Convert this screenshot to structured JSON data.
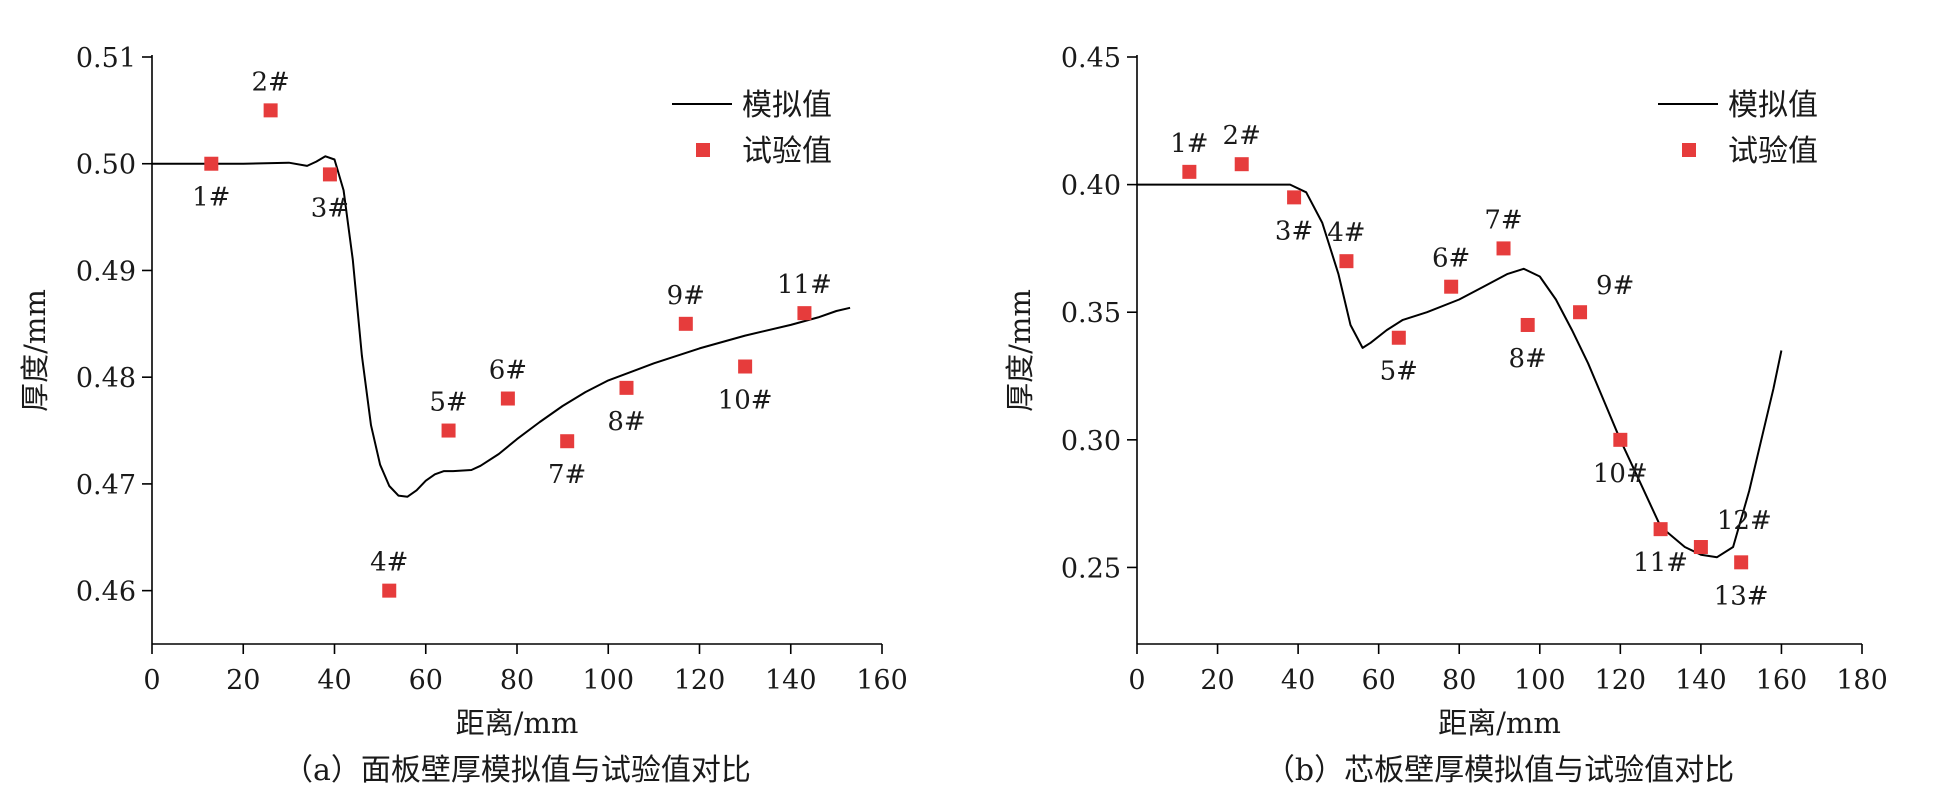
{
  "chart_data": [
    {
      "type": "line",
      "caption": "（a）面板壁厚模拟值与试验值对比",
      "xlabel": "距离/mm",
      "ylabel": "厚度/mm",
      "xlim": [
        0,
        160
      ],
      "ylim": [
        0.455,
        0.51
      ],
      "xticks": [
        0,
        20,
        40,
        60,
        80,
        100,
        120,
        140,
        160
      ],
      "yticks": [
        0.46,
        0.47,
        0.48,
        0.49,
        0.5,
        0.51
      ],
      "ytick_labels": [
        "0.46",
        "0.47",
        "0.48",
        "0.49",
        "0.50",
        "0.51"
      ],
      "legend": {
        "position": "top-right",
        "entries": [
          "模拟值",
          "试验值"
        ]
      },
      "series": [
        {
          "name": "模拟值",
          "kind": "line",
          "color": "#000000",
          "x": [
            0,
            10,
            20,
            30,
            34,
            36,
            38,
            40,
            42,
            44,
            46,
            48,
            50,
            52,
            54,
            56,
            58,
            60,
            62,
            64,
            66,
            70,
            72,
            76,
            80,
            85,
            90,
            95,
            100,
            110,
            120,
            130,
            140,
            146,
            150,
            153
          ],
          "y": [
            0.5,
            0.5,
            0.5,
            0.5001,
            0.4998,
            0.5002,
            0.5007,
            0.5004,
            0.4975,
            0.491,
            0.482,
            0.4755,
            0.4718,
            0.4698,
            0.4689,
            0.4688,
            0.4694,
            0.4703,
            0.4709,
            0.4712,
            0.4712,
            0.4713,
            0.4717,
            0.4728,
            0.4742,
            0.4758,
            0.4773,
            0.4786,
            0.4797,
            0.4813,
            0.4827,
            0.4839,
            0.4849,
            0.4856,
            0.4862,
            0.4865
          ]
        },
        {
          "name": "试验值",
          "kind": "scatter",
          "color": "#e63c3c",
          "points": [
            {
              "label": "1#",
              "x": 13,
              "y": 0.5,
              "label_pos": "below"
            },
            {
              "label": "2#",
              "x": 26,
              "y": 0.505,
              "label_pos": "above"
            },
            {
              "label": "3#",
              "x": 39,
              "y": 0.499,
              "label_pos": "below"
            },
            {
              "label": "4#",
              "x": 52,
              "y": 0.46,
              "label_pos": "above"
            },
            {
              "label": "5#",
              "x": 65,
              "y": 0.475,
              "label_pos": "above"
            },
            {
              "label": "6#",
              "x": 78,
              "y": 0.478,
              "label_pos": "above"
            },
            {
              "label": "7#",
              "x": 91,
              "y": 0.474,
              "label_pos": "below"
            },
            {
              "label": "8#",
              "x": 104,
              "y": 0.479,
              "label_pos": "below"
            },
            {
              "label": "9#",
              "x": 117,
              "y": 0.485,
              "label_pos": "above"
            },
            {
              "label": "10#",
              "x": 130,
              "y": 0.481,
              "label_pos": "below"
            },
            {
              "label": "11#",
              "x": 143,
              "y": 0.486,
              "label_pos": "above"
            }
          ]
        }
      ]
    },
    {
      "type": "line",
      "caption": "（b）芯板壁厚模拟值与试验值对比",
      "xlabel": "距离/mm",
      "ylabel": "厚度/mm",
      "xlim": [
        0,
        180
      ],
      "ylim": [
        0.22,
        0.45
      ],
      "xticks": [
        0,
        20,
        40,
        60,
        80,
        100,
        120,
        140,
        160,
        180
      ],
      "yticks": [
        0.25,
        0.3,
        0.35,
        0.4,
        0.45
      ],
      "ytick_labels": [
        "0.25",
        "0.30",
        "0.35",
        "0.40",
        "0.45"
      ],
      "legend": {
        "position": "top-right",
        "entries": [
          "模拟值",
          "试验值"
        ]
      },
      "series": [
        {
          "name": "模拟值",
          "kind": "line",
          "color": "#000000",
          "x": [
            0,
            20,
            38,
            42,
            46,
            50,
            53,
            56,
            58,
            62,
            66,
            72,
            80,
            86,
            92,
            96,
            100,
            104,
            108,
            112,
            116,
            120,
            125,
            130,
            136,
            140,
            144,
            148,
            152,
            155,
            158,
            160
          ],
          "y": [
            0.4,
            0.4,
            0.4,
            0.397,
            0.385,
            0.365,
            0.345,
            0.336,
            0.338,
            0.343,
            0.347,
            0.35,
            0.355,
            0.36,
            0.365,
            0.367,
            0.364,
            0.355,
            0.343,
            0.33,
            0.315,
            0.3,
            0.283,
            0.266,
            0.258,
            0.255,
            0.254,
            0.258,
            0.28,
            0.3,
            0.32,
            0.335
          ]
        },
        {
          "name": "试验值",
          "kind": "scatter",
          "color": "#e63c3c",
          "points": [
            {
              "label": "1#",
              "x": 13,
              "y": 0.405,
              "label_pos": "above"
            },
            {
              "label": "2#",
              "x": 26,
              "y": 0.408,
              "label_pos": "above"
            },
            {
              "label": "3#",
              "x": 39,
              "y": 0.395,
              "label_pos": "below"
            },
            {
              "label": "4#",
              "x": 52,
              "y": 0.37,
              "label_pos": "above"
            },
            {
              "label": "5#",
              "x": 65,
              "y": 0.34,
              "label_pos": "below"
            },
            {
              "label": "6#",
              "x": 78,
              "y": 0.36,
              "label_pos": "above"
            },
            {
              "label": "7#",
              "x": 91,
              "y": 0.375,
              "label_pos": "above"
            },
            {
              "label": "8#",
              "x": 97,
              "y": 0.345,
              "label_pos": "below"
            },
            {
              "label": "9#",
              "x": 110,
              "y": 0.35,
              "label_pos": "above-right"
            },
            {
              "label": "10#",
              "x": 120,
              "y": 0.3,
              "label_pos": "below"
            },
            {
              "label": "11#",
              "x": 130,
              "y": 0.265,
              "label_pos": "below"
            },
            {
              "label": "12#",
              "x": 140,
              "y": 0.258,
              "label_pos": "above-right"
            },
            {
              "label": "13#",
              "x": 150,
              "y": 0.252,
              "label_pos": "below"
            }
          ]
        }
      ]
    }
  ]
}
